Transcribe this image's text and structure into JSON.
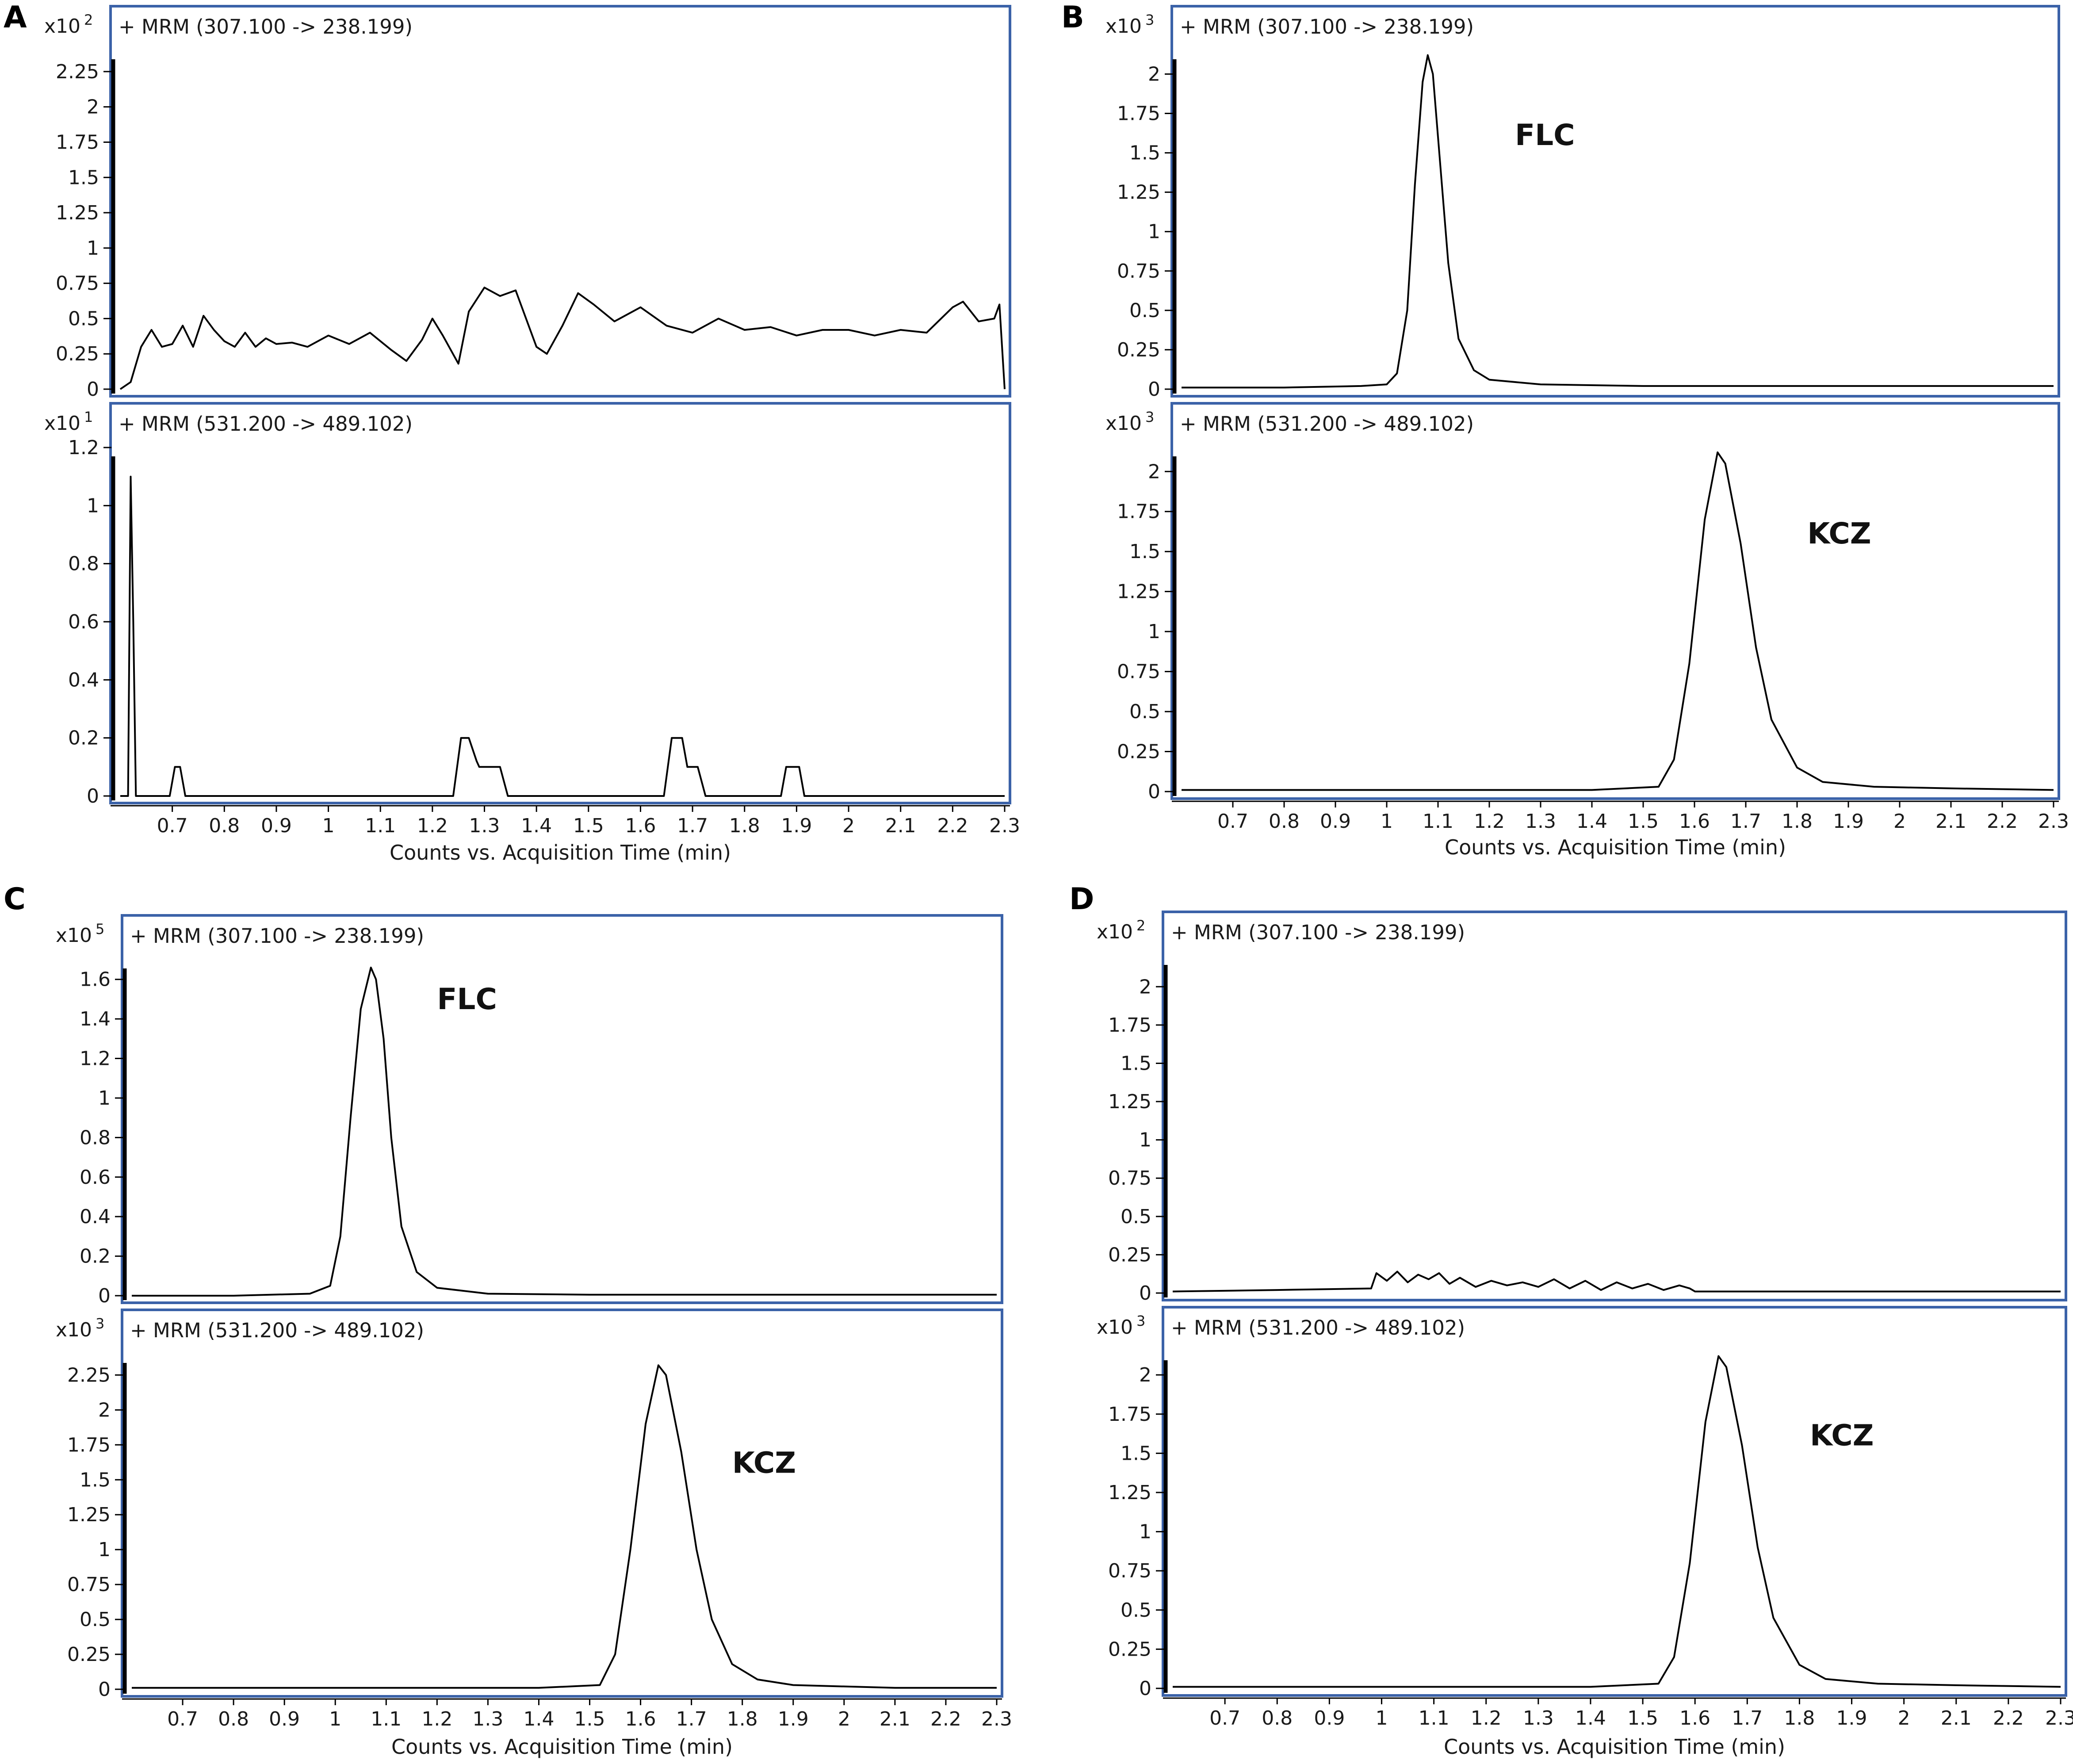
{
  "chart_data": [
    {
      "panel": "A",
      "xlabel": "Counts vs. Acquisition Time (min)",
      "x_ticks": [
        "0.7",
        "0.8",
        "0.9",
        "1",
        "1.1",
        "1.2",
        "1.3",
        "1.4",
        "1.5",
        "1.6",
        "1.7",
        "1.8",
        "1.9",
        "2",
        "2.1",
        "2.2",
        "2.3"
      ],
      "xlim": [
        0.6,
        2.3
      ],
      "traces": [
        {
          "type": "line",
          "title": "+ MRM (307.100 -> 238.199)",
          "multiplier": "x10",
          "exponent": "2",
          "y_ticks": [
            "0",
            "0.25",
            "0.5",
            "0.75",
            "1",
            "1.25",
            "1.5",
            "1.75",
            "2",
            "2.25"
          ],
          "ylim": [
            0,
            2.4
          ],
          "x": [
            0.6,
            0.62,
            0.64,
            0.66,
            0.68,
            0.7,
            0.72,
            0.74,
            0.76,
            0.78,
            0.8,
            0.82,
            0.84,
            0.86,
            0.88,
            0.9,
            0.93,
            0.96,
            1,
            1.04,
            1.08,
            1.12,
            1.15,
            1.18,
            1.2,
            1.22,
            1.25,
            1.27,
            1.3,
            1.33,
            1.36,
            1.4,
            1.42,
            1.45,
            1.48,
            1.51,
            1.55,
            1.6,
            1.65,
            1.7,
            1.75,
            1.8,
            1.85,
            1.9,
            1.95,
            2,
            2.05,
            2.1,
            2.15,
            2.2,
            2.22,
            2.25,
            2.28,
            2.29,
            2.3
          ],
          "y": [
            0,
            0.05,
            0.3,
            0.42,
            0.3,
            0.32,
            0.45,
            0.3,
            0.52,
            0.42,
            0.34,
            0.3,
            0.4,
            0.3,
            0.36,
            0.32,
            0.33,
            0.3,
            0.38,
            0.32,
            0.4,
            0.28,
            0.2,
            0.35,
            0.5,
            0.38,
            0.18,
            0.55,
            0.72,
            0.66,
            0.7,
            0.3,
            0.25,
            0.45,
            0.68,
            0.6,
            0.48,
            0.58,
            0.45,
            0.4,
            0.5,
            0.42,
            0.44,
            0.38,
            0.42,
            0.42,
            0.38,
            0.42,
            0.4,
            0.58,
            0.62,
            0.48,
            0.5,
            0.6,
            0
          ]
        },
        {
          "type": "line",
          "title": "+ MRM (531.200 -> 489.102)",
          "multiplier": "x10",
          "exponent": "1",
          "y_ticks": [
            "0",
            "0.2",
            "0.4",
            "0.6",
            "0.8",
            "1",
            "1.2"
          ],
          "ylim": [
            0,
            1.2
          ],
          "x": [
            0.6,
            0.615,
            0.62,
            0.625,
            0.63,
            0.64,
            0.695,
            0.705,
            0.715,
            0.725,
            1.24,
            1.255,
            1.27,
            1.285,
            1.29,
            1.33,
            1.345,
            1.6,
            1.645,
            1.66,
            1.68,
            1.69,
            1.71,
            1.725,
            1.87,
            1.88,
            1.905,
            1.915,
            2.3
          ],
          "y": [
            0,
            0,
            1.1,
            0.6,
            0,
            0,
            0,
            0.1,
            0.1,
            0,
            0,
            0.2,
            0.2,
            0.12,
            0.1,
            0.1,
            0,
            0,
            0,
            0.2,
            0.2,
            0.1,
            0.1,
            0,
            0,
            0.1,
            0.1,
            0,
            0
          ]
        }
      ]
    },
    {
      "panel": "B",
      "xlabel": "Counts vs. Acquisition Time (min)",
      "x_ticks": [
        "0.7",
        "0.8",
        "0.9",
        "1",
        "1.1",
        "1.2",
        "1.3",
        "1.4",
        "1.5",
        "1.6",
        "1.7",
        "1.8",
        "1.9",
        "2",
        "2.1",
        "2.2",
        "2.3"
      ],
      "xlim": [
        0.6,
        2.3
      ],
      "traces": [
        {
          "type": "line",
          "title": "+ MRM (307.100 -> 238.199)",
          "multiplier": "x10",
          "exponent": "3",
          "y_ticks": [
            "0",
            "0.25",
            "0.5",
            "0.75",
            "1",
            "1.25",
            "1.5",
            "1.75",
            "2"
          ],
          "ylim": [
            0,
            2.15
          ],
          "x": [
            0.6,
            0.8,
            0.95,
            1.0,
            1.02,
            1.04,
            1.055,
            1.07,
            1.08,
            1.09,
            1.1,
            1.12,
            1.14,
            1.17,
            1.2,
            1.3,
            1.5,
            1.7,
            1.9,
            2.1,
            2.3
          ],
          "y": [
            0.01,
            0.01,
            0.02,
            0.03,
            0.1,
            0.5,
            1.3,
            1.95,
            2.12,
            2.0,
            1.6,
            0.8,
            0.32,
            0.12,
            0.06,
            0.03,
            0.02,
            0.02,
            0.02,
            0.02,
            0.02
          ]
        },
        {
          "type": "line",
          "title": "+ MRM (531.200 -> 489.102)",
          "multiplier": "x10",
          "exponent": "3",
          "y_ticks": [
            "0",
            "0.25",
            "0.5",
            "0.75",
            "1",
            "1.25",
            "1.5",
            "1.75",
            "2"
          ],
          "ylim": [
            0,
            2.15
          ],
          "x": [
            0.6,
            1.0,
            1.4,
            1.53,
            1.56,
            1.59,
            1.62,
            1.645,
            1.66,
            1.69,
            1.72,
            1.75,
            1.8,
            1.85,
            1.95,
            2.1,
            2.3
          ],
          "y": [
            0.01,
            0.01,
            0.01,
            0.03,
            0.2,
            0.8,
            1.7,
            2.12,
            2.05,
            1.55,
            0.9,
            0.45,
            0.15,
            0.06,
            0.03,
            0.02,
            0.01
          ]
        }
      ]
    },
    {
      "panel": "C",
      "xlabel": "Counts vs. Acquisition Time (min)",
      "x_ticks": [
        "0.7",
        "0.8",
        "0.9",
        "1",
        "1.1",
        "1.2",
        "1.3",
        "1.4",
        "1.5",
        "1.6",
        "1.7",
        "1.8",
        "1.9",
        "2",
        "2.1",
        "2.2",
        "2.3"
      ],
      "xlim": [
        0.6,
        2.3
      ],
      "traces": [
        {
          "type": "line",
          "title": "+ MRM (307.100 -> 238.199)",
          "multiplier": "x10",
          "exponent": "5",
          "y_ticks": [
            "0",
            "0.2",
            "0.4",
            "0.6",
            "0.8",
            "1",
            "1.2",
            "1.4",
            "1.6"
          ],
          "ylim": [
            0,
            1.7
          ],
          "x": [
            0.6,
            0.8,
            0.95,
            0.99,
            1.01,
            1.03,
            1.05,
            1.07,
            1.08,
            1.095,
            1.11,
            1.13,
            1.16,
            1.2,
            1.3,
            1.5,
            1.8,
            2.1,
            2.3
          ],
          "y": [
            0,
            0,
            0.01,
            0.05,
            0.3,
            0.9,
            1.45,
            1.66,
            1.6,
            1.3,
            0.8,
            0.35,
            0.12,
            0.04,
            0.01,
            0.005,
            0.005,
            0.005,
            0.005
          ]
        },
        {
          "type": "line",
          "title": "+ MRM (531.200 -> 489.102)",
          "multiplier": "x10",
          "exponent": "3",
          "y_ticks": [
            "0",
            "0.25",
            "0.5",
            "0.75",
            "1",
            "1.25",
            "1.5",
            "1.75",
            "2",
            "2.25"
          ],
          "ylim": [
            0,
            2.4
          ],
          "x": [
            0.6,
            1.0,
            1.4,
            1.52,
            1.55,
            1.58,
            1.61,
            1.635,
            1.65,
            1.68,
            1.71,
            1.74,
            1.78,
            1.83,
            1.9,
            2.1,
            2.3
          ],
          "y": [
            0.01,
            0.01,
            0.01,
            0.03,
            0.25,
            1.0,
            1.9,
            2.32,
            2.25,
            1.7,
            1.0,
            0.5,
            0.18,
            0.07,
            0.03,
            0.01,
            0.01
          ]
        }
      ]
    },
    {
      "panel": "D",
      "xlabel": "Counts vs. Acquisition Time (min)",
      "x_ticks": [
        "0.7",
        "0.8",
        "0.9",
        "1",
        "1.1",
        "1.2",
        "1.3",
        "1.4",
        "1.5",
        "1.6",
        "1.7",
        "1.8",
        "1.9",
        "2",
        "2.1",
        "2.2",
        "2.3"
      ],
      "xlim": [
        0.6,
        2.3
      ],
      "traces": [
        {
          "type": "line",
          "title": "+ MRM (307.100 -> 238.199)",
          "multiplier": "x10",
          "exponent": "2",
          "y_ticks": [
            "0",
            "0.25",
            "0.5",
            "0.75",
            "1",
            "1.25",
            "1.5",
            "1.75",
            "2"
          ],
          "ylim": [
            0,
            2.2
          ],
          "x": [
            0.6,
            0.8,
            0.98,
            0.99,
            1.01,
            1.03,
            1.05,
            1.07,
            1.09,
            1.11,
            1.13,
            1.15,
            1.18,
            1.21,
            1.24,
            1.27,
            1.3,
            1.33,
            1.36,
            1.39,
            1.42,
            1.45,
            1.48,
            1.51,
            1.54,
            1.57,
            1.59,
            1.6,
            1.8,
            2.0,
            2.3
          ],
          "y": [
            0.01,
            0.02,
            0.03,
            0.13,
            0.08,
            0.14,
            0.07,
            0.12,
            0.09,
            0.13,
            0.06,
            0.1,
            0.04,
            0.08,
            0.05,
            0.07,
            0.04,
            0.09,
            0.03,
            0.08,
            0.02,
            0.07,
            0.03,
            0.06,
            0.02,
            0.05,
            0.03,
            0.01,
            0.01,
            0.01,
            0.01
          ]
        },
        {
          "type": "line",
          "title": "+ MRM (531.200 -> 489.102)",
          "multiplier": "x10",
          "exponent": "3",
          "y_ticks": [
            "0",
            "0.25",
            "0.5",
            "0.75",
            "1",
            "1.25",
            "1.5",
            "1.75",
            "2"
          ],
          "ylim": [
            0,
            2.15
          ],
          "x": [
            0.6,
            1.0,
            1.4,
            1.53,
            1.56,
            1.59,
            1.62,
            1.645,
            1.66,
            1.69,
            1.72,
            1.75,
            1.8,
            1.85,
            1.95,
            2.1,
            2.3
          ],
          "y": [
            0.01,
            0.01,
            0.01,
            0.03,
            0.2,
            0.8,
            1.7,
            2.12,
            2.05,
            1.55,
            0.9,
            0.45,
            0.15,
            0.06,
            0.03,
            0.02,
            0.01
          ]
        }
      ]
    }
  ],
  "annotations": [
    {
      "panel": "B",
      "trace": 0,
      "text": "FLC",
      "x": 1.25,
      "y": 1.55
    },
    {
      "panel": "B",
      "trace": 1,
      "text": "KCZ",
      "x": 1.82,
      "y": 1.55
    },
    {
      "panel": "C",
      "trace": 0,
      "text": "FLC",
      "x": 1.2,
      "y": 1.45
    },
    {
      "panel": "C",
      "trace": 1,
      "text": "KCZ",
      "x": 1.78,
      "y": 1.55
    },
    {
      "panel": "D",
      "trace": 1,
      "text": "KCZ",
      "x": 1.82,
      "y": 1.55
    }
  ]
}
